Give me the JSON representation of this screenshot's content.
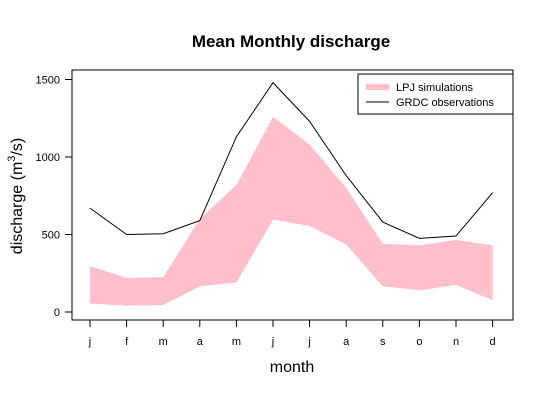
{
  "chart_data": {
    "type": "area",
    "title": "Mean Monthly discharge",
    "xlabel": "month",
    "ylabel_main": "discharge (m",
    "ylabel_sup": "3",
    "ylabel_end": "/s)",
    "categories": [
      "j",
      "f",
      "m",
      "a",
      "m",
      "j",
      "j",
      "a",
      "s",
      "o",
      "n",
      "d"
    ],
    "yticks": [
      "0",
      "500",
      "1000",
      "1500"
    ],
    "ylim": [
      0,
      1500
    ],
    "grid": false,
    "legend_position": "top-right",
    "series": [
      {
        "name": "LPJ simulations",
        "kind": "band",
        "color": "#ffc0cb",
        "lower": [
          55,
          40,
          45,
          165,
          190,
          595,
          555,
          435,
          165,
          140,
          175,
          75
        ],
        "upper": [
          295,
          220,
          225,
          600,
          820,
          1260,
          1080,
          800,
          440,
          430,
          465,
          430
        ]
      },
      {
        "name": "GRDC observations",
        "kind": "line",
        "color": "#000000",
        "values": [
          670,
          500,
          505,
          590,
          1130,
          1480,
          1230,
          880,
          580,
          475,
          490,
          770
        ]
      }
    ]
  }
}
